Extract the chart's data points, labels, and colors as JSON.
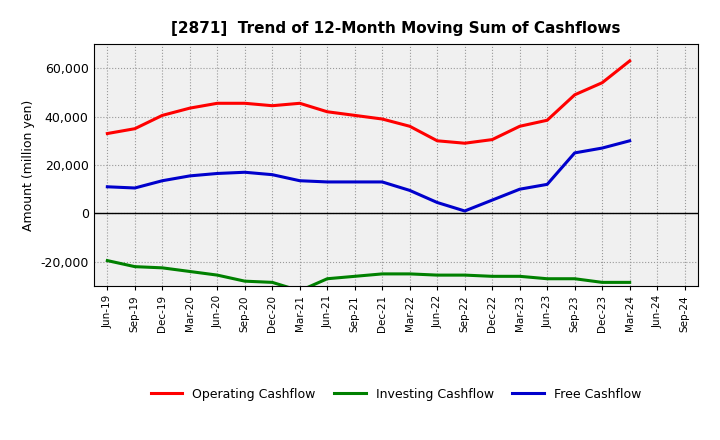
{
  "title": "[2871]  Trend of 12-Month Moving Sum of Cashflows",
  "ylabel": "Amount (million yen)",
  "ylim": [
    -30000,
    70000
  ],
  "yticks": [
    -20000,
    0,
    20000,
    40000,
    60000
  ],
  "labels": [
    "Jun-19",
    "Sep-19",
    "Dec-19",
    "Mar-20",
    "Jun-20",
    "Sep-20",
    "Dec-20",
    "Mar-21",
    "Jun-21",
    "Sep-21",
    "Dec-21",
    "Mar-22",
    "Jun-22",
    "Sep-22",
    "Dec-22",
    "Mar-23",
    "Jun-23",
    "Sep-23",
    "Dec-23",
    "Mar-24",
    "Jun-24",
    "Sep-24"
  ],
  "operating": [
    33000,
    35000,
    40500,
    43500,
    45500,
    45500,
    44500,
    45500,
    42000,
    40500,
    39000,
    36000,
    30000,
    29000,
    30500,
    36000,
    38500,
    49000,
    54000,
    63000,
    null,
    null
  ],
  "investing": [
    -19500,
    -22000,
    -22500,
    -24000,
    -25500,
    -28000,
    -28500,
    -32000,
    -27000,
    -26000,
    -25000,
    -25000,
    -25500,
    -25500,
    -26000,
    -26000,
    -27000,
    -27000,
    -28500,
    -28500,
    null,
    null
  ],
  "free": [
    11000,
    10500,
    13500,
    15500,
    16500,
    17000,
    16000,
    13500,
    13000,
    13000,
    13000,
    9500,
    4500,
    1000,
    5500,
    10000,
    12000,
    25000,
    27000,
    30000,
    null,
    null
  ],
  "operating_color": "#ff0000",
  "investing_color": "#008000",
  "free_color": "#0000cc",
  "bg_color": "#ffffff",
  "plot_bg_color": "#f0f0f0",
  "grid_color": "#999999",
  "legend_labels": [
    "Operating Cashflow",
    "Investing Cashflow",
    "Free Cashflow"
  ]
}
